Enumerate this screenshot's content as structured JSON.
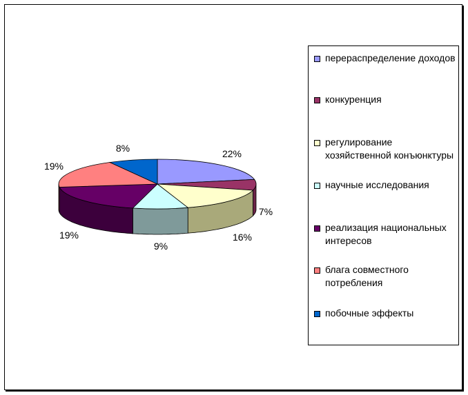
{
  "chart_data": {
    "type": "pie",
    "title": "",
    "slices": [
      {
        "label": "перераспределение доходов",
        "value": 22,
        "label_text": "22%",
        "color": "#9999ff",
        "side": "#6a6ab3"
      },
      {
        "label": "конкуренция",
        "value": 7,
        "label_text": "7%",
        "color": "#993366",
        "side": "#6b2447"
      },
      {
        "label": "регулирование хозяйственной конъюнктуры",
        "value": 16,
        "label_text": "16%",
        "color": "#ffffcc",
        "side": "#a9a97a"
      },
      {
        "label": "научные исследования",
        "value": 9,
        "label_text": "9%",
        "color": "#ccffff",
        "side": "#7f9a9a"
      },
      {
        "label": "реализация национальных интересов",
        "value": 19,
        "label_text": "19%",
        "color": "#660066",
        "side": "#3c003c"
      },
      {
        "label": "блага совместного потребления",
        "value": 19,
        "label_text": "19%",
        "color": "#ff8080",
        "side": "#b35959"
      },
      {
        "label": "побочные эффекты",
        "value": 8,
        "label_text": "8%",
        "color": "#0066cc",
        "side": "#00478f"
      }
    ],
    "legend_position": "right"
  }
}
